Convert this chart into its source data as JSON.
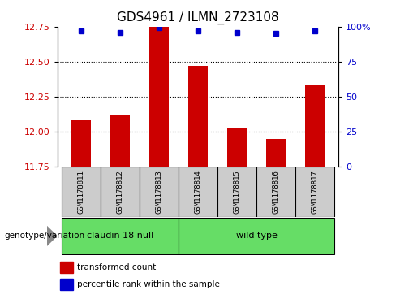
{
  "title": "GDS4961 / ILMN_2723108",
  "samples": [
    "GSM1178811",
    "GSM1178812",
    "GSM1178813",
    "GSM1178814",
    "GSM1178815",
    "GSM1178816",
    "GSM1178817"
  ],
  "transformed_counts": [
    12.08,
    12.12,
    12.75,
    12.47,
    12.03,
    11.95,
    12.33
  ],
  "percentile_ranks": [
    97,
    96,
    99,
    97,
    96,
    95,
    97
  ],
  "ylim_left": [
    11.75,
    12.75
  ],
  "ylim_right": [
    0,
    100
  ],
  "yticks_left": [
    11.75,
    12.0,
    12.25,
    12.5,
    12.75
  ],
  "yticks_right": [
    0,
    25,
    50,
    75,
    100
  ],
  "bar_color": "#cc0000",
  "dot_color": "#0000cc",
  "groups": [
    {
      "label": "claudin 18 null",
      "start": 0,
      "end": 2
    },
    {
      "label": "wild type",
      "start": 3,
      "end": 6
    }
  ],
  "genotype_label": "genotype/variation",
  "legend_bar_label": "transformed count",
  "legend_dot_label": "percentile rank within the sample",
  "title_fontsize": 11,
  "tick_label_color_left": "#cc0000",
  "tick_label_color_right": "#0000cc",
  "bar_width": 0.5,
  "sample_box_bg": "#cccccc",
  "group_box_bg": "#66dd66"
}
